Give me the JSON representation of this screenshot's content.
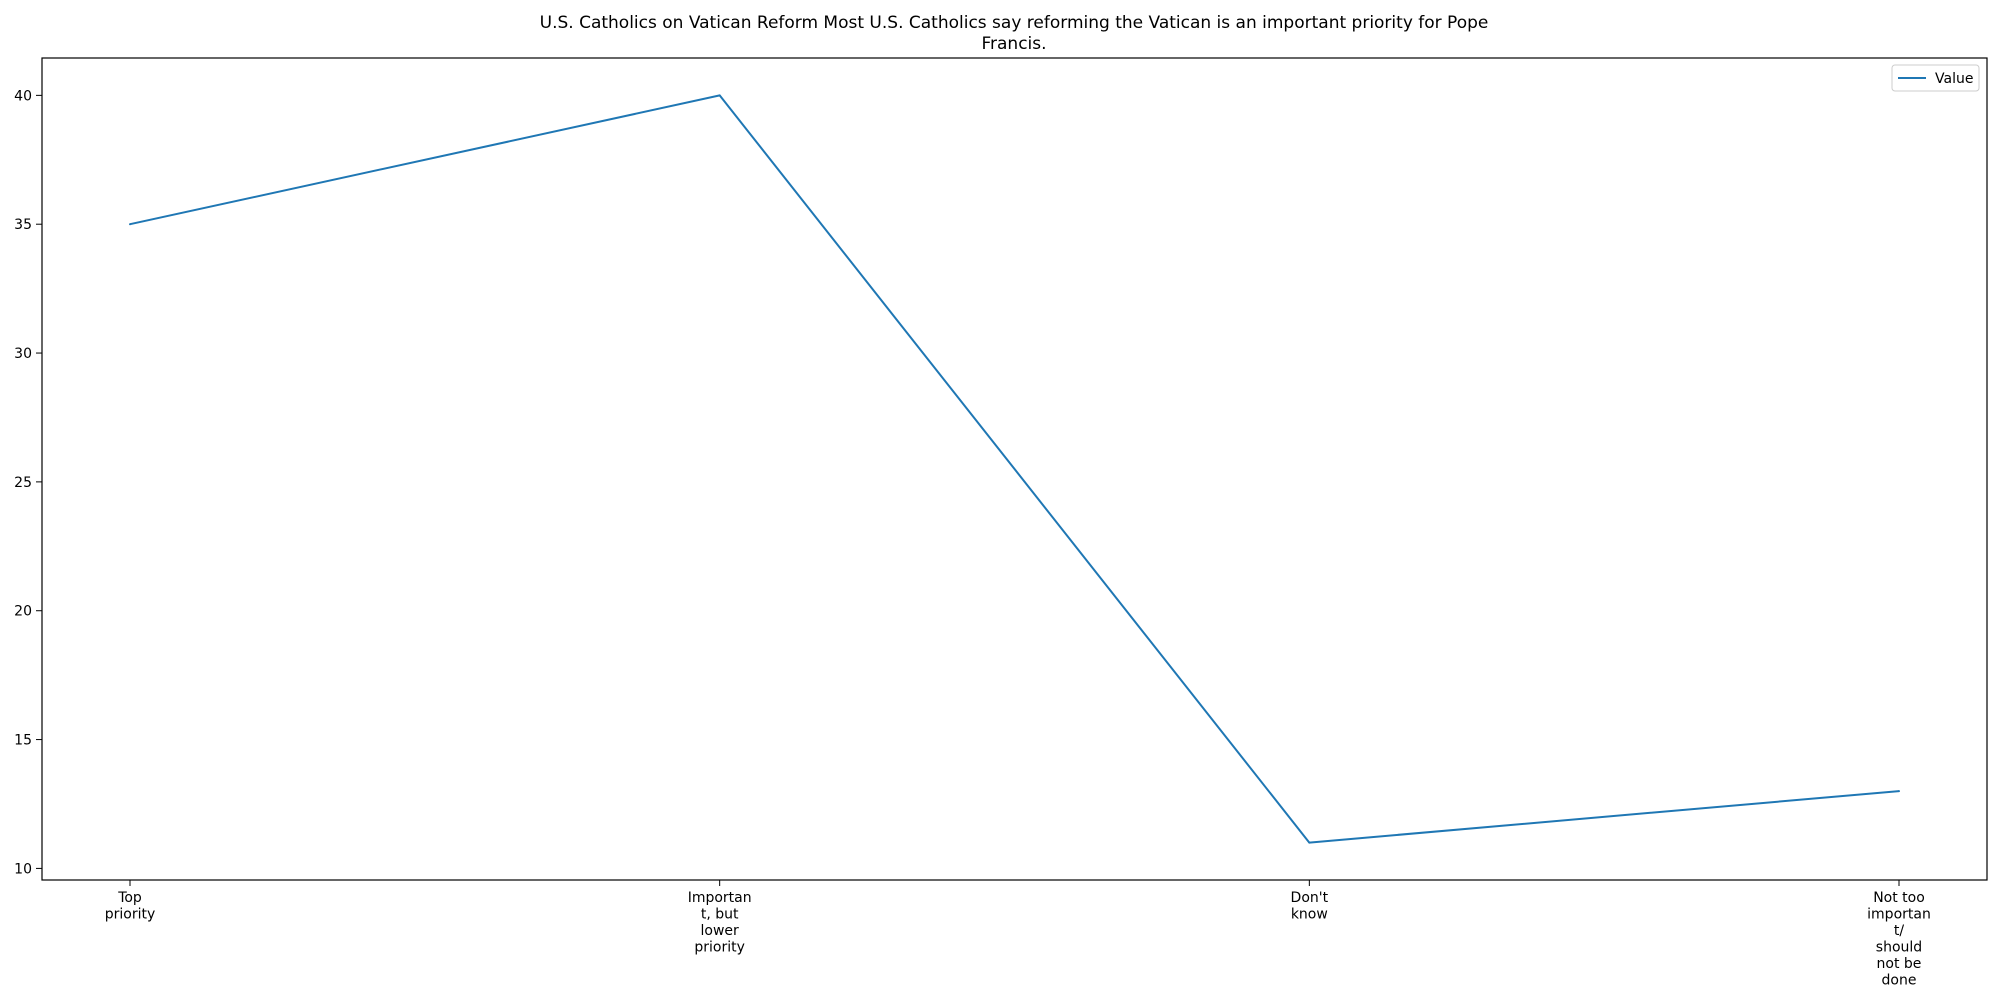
{
  "chart_data": {
    "type": "line",
    "title_lines": [
      "U.S. Catholics on Vatican Reform Most U.S. Catholics say reforming the Vatican is an important priority for Pope",
      "Francis."
    ],
    "xlabel": "",
    "ylabel": "",
    "categories": [
      [
        "Top",
        "priority"
      ],
      [
        "Importan",
        "t, but",
        "lower",
        "priority"
      ],
      [
        "Don't",
        "know"
      ],
      [
        "Not too",
        "importan",
        "t/",
        "should",
        "not be",
        "done"
      ]
    ],
    "series": [
      {
        "name": "Value",
        "values": [
          35,
          40,
          11,
          13
        ],
        "color": "#1f77b4"
      }
    ],
    "ylim": [
      9.55,
      41.45
    ],
    "yticks": [
      10,
      15,
      20,
      25,
      30,
      35,
      40
    ],
    "grid": false,
    "legend_position": "top-right"
  }
}
